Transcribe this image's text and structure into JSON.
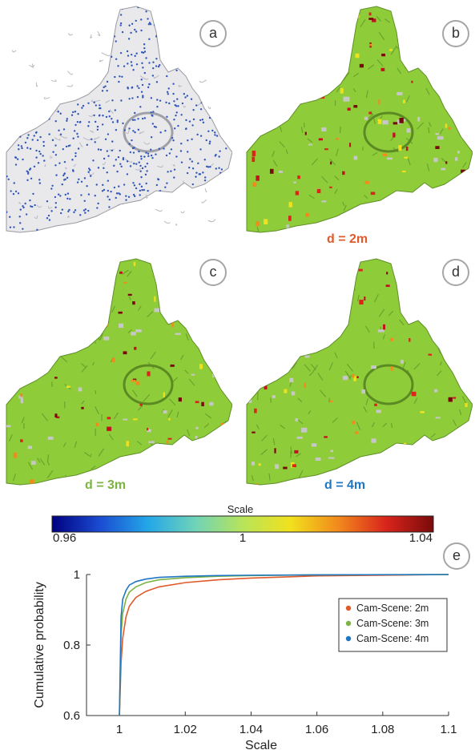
{
  "panels": [
    {
      "id": "a",
      "label": "a",
      "style": "points"
    },
    {
      "id": "b",
      "label": "b",
      "style": "colored",
      "caption": "d = 2m",
      "caption_color": "#e05a2b"
    },
    {
      "id": "c",
      "label": "c",
      "style": "colored",
      "caption": "d = 3m",
      "caption_color": "#7cb342"
    },
    {
      "id": "d",
      "label": "d",
      "style": "colored",
      "caption": "d = 4m",
      "caption_color": "#1f77c4"
    }
  ],
  "colorbar": {
    "title": "Scale",
    "tick_labels": [
      "0.96",
      "1",
      "1.04"
    ],
    "range": [
      0.96,
      1.04
    ],
    "colormap": [
      "#000080",
      "#1a4bd1",
      "#23a6e8",
      "#6fd3b8",
      "#b7e45a",
      "#f1e11d",
      "#f28a1c",
      "#d9251c",
      "#7a0a0a"
    ]
  },
  "chart_data": {
    "type": "line",
    "panel_label": "e",
    "xlabel": "Scale",
    "ylabel": "Cumulative probability",
    "xlim": [
      0.99,
      1.1
    ],
    "ylim": [
      0.6,
      1.0
    ],
    "xticks": [
      "1",
      "1.02",
      "1.04",
      "1.06",
      "1.08",
      "1.1"
    ],
    "yticks": [
      "0.6",
      "0.8",
      "1"
    ],
    "legend_position": "upper-right",
    "series": [
      {
        "name": "Cam-Scene: 2m",
        "color": "#e05a2b",
        "x": [
          1.0,
          1.0005,
          1.001,
          1.002,
          1.003,
          1.005,
          1.008,
          1.012,
          1.02,
          1.03,
          1.04,
          1.06,
          1.1
        ],
        "y": [
          0.6,
          0.75,
          0.82,
          0.88,
          0.91,
          0.935,
          0.952,
          0.965,
          0.977,
          0.985,
          0.99,
          0.996,
          1.0
        ]
      },
      {
        "name": "Cam-Scene: 3m",
        "color": "#7cb342",
        "x": [
          1.0,
          1.0005,
          1.001,
          1.002,
          1.003,
          1.005,
          1.008,
          1.012,
          1.02,
          1.03,
          1.04,
          1.06,
          1.1
        ],
        "y": [
          0.6,
          0.83,
          0.89,
          0.93,
          0.95,
          0.965,
          0.977,
          0.985,
          0.991,
          0.995,
          0.997,
          0.999,
          1.0
        ]
      },
      {
        "name": "Cam-Scene: 4m",
        "color": "#1f77c4",
        "x": [
          1.0,
          1.0005,
          1.001,
          1.002,
          1.003,
          1.005,
          1.008,
          1.012,
          1.02,
          1.03,
          1.04,
          1.06,
          1.1
        ],
        "y": [
          0.6,
          0.88,
          0.93,
          0.955,
          0.97,
          0.98,
          0.987,
          0.992,
          0.995,
          0.997,
          0.998,
          0.999,
          1.0
        ]
      }
    ]
  }
}
